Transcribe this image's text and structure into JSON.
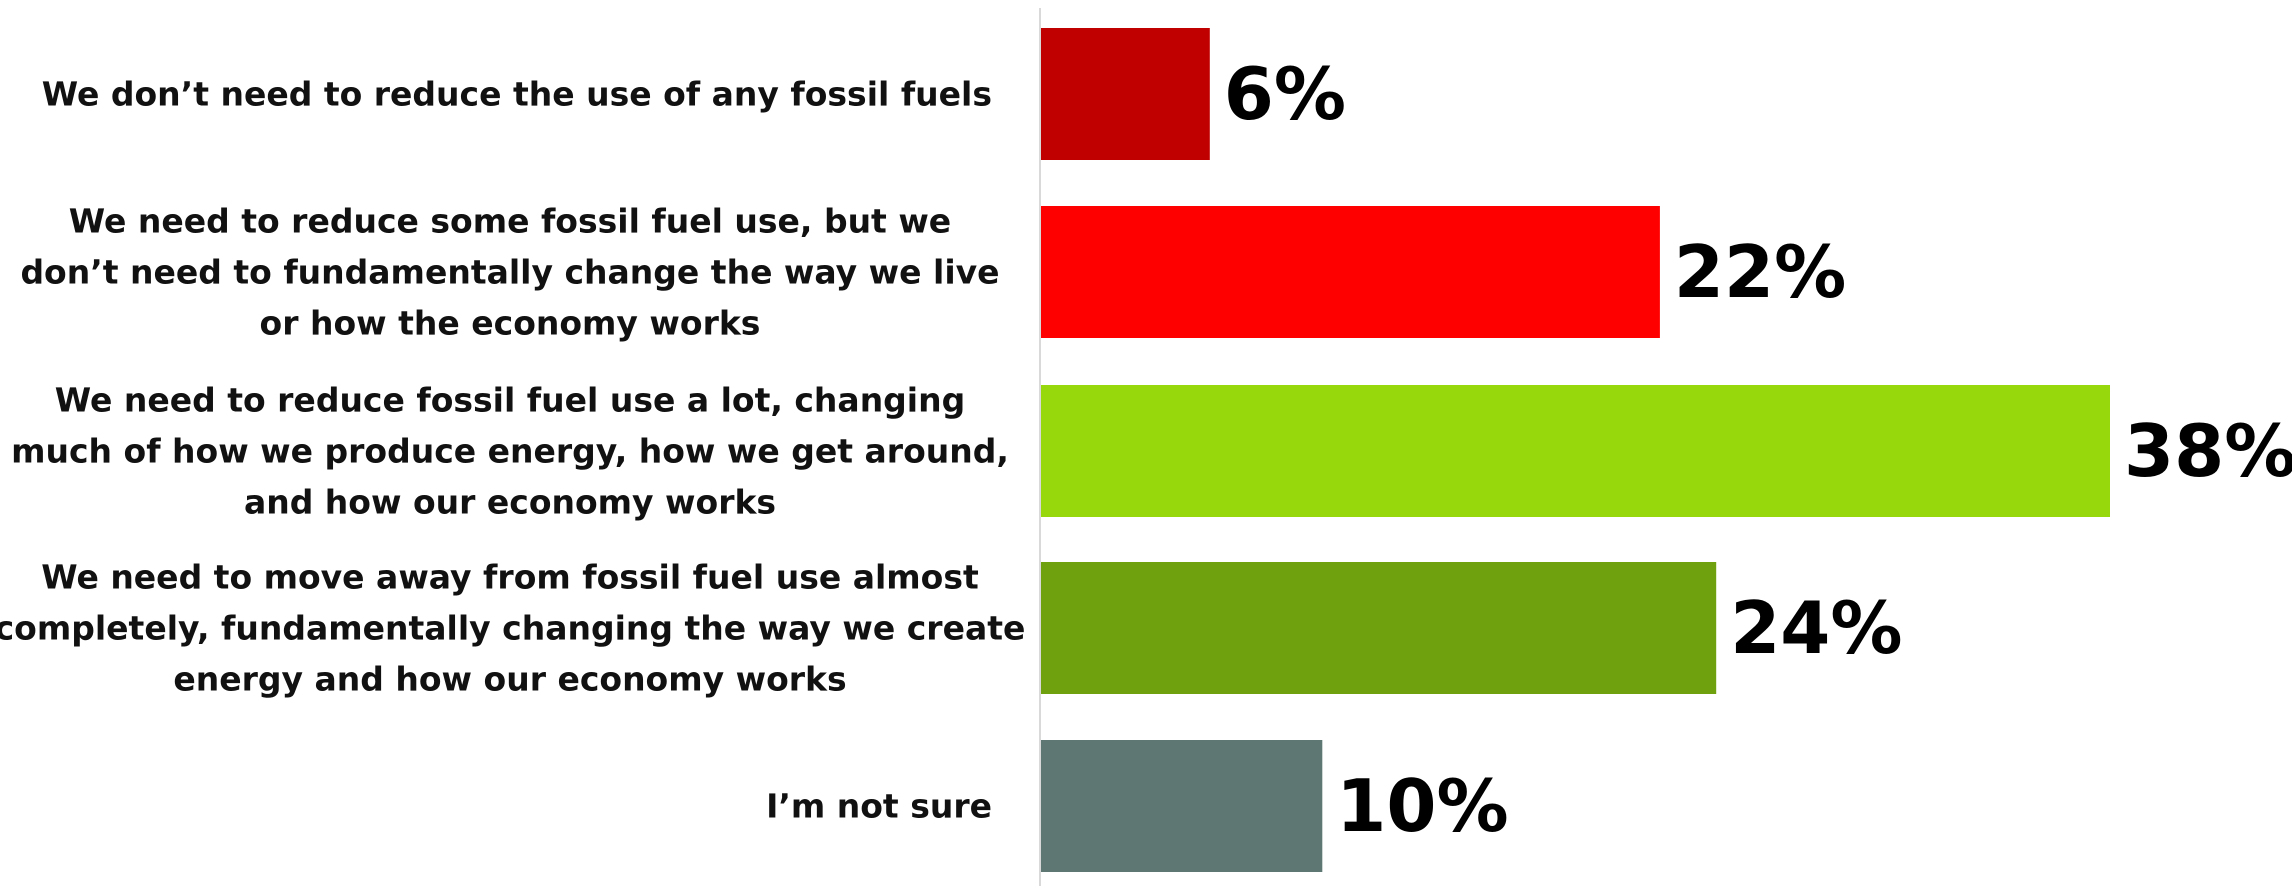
{
  "chart_data": {
    "type": "bar",
    "orientation": "horizontal",
    "categories": [
      "We don’t need to reduce the use of any fossil fuels",
      "We need to reduce some fossil fuel use, but we don’t need to fundamentally change the way we live or how the economy works",
      "We need to reduce fossil fuel use a lot, changing much of how we produce energy, how we get around, and how our economy works",
      "We need to move away from fossil fuel use almost completely, fundamentally changing the way we create energy and how our economy works",
      "I’m not sure"
    ],
    "values": [
      6,
      22,
      38,
      24,
      10
    ],
    "value_labels": [
      "6%",
      "22%",
      "38%",
      "24%",
      "10%"
    ],
    "colors": [
      "#C00000",
      "#FF0000",
      "#97D80C",
      "#6FA10E",
      "#5F7772"
    ],
    "xlim": [
      0,
      38
    ],
    "unit": "%",
    "title": "",
    "xlabel": "",
    "ylabel": "",
    "grid": false,
    "legend": "none"
  }
}
